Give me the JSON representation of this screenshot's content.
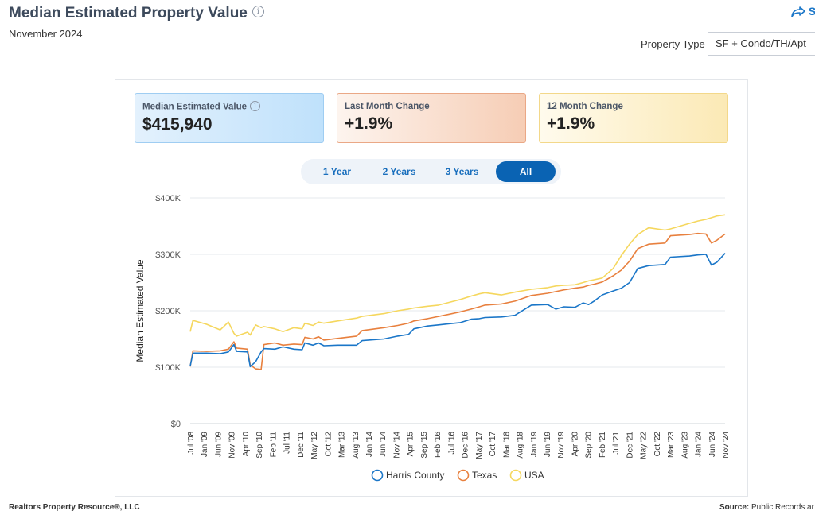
{
  "header": {
    "title": "Median Estimated Property Value",
    "subtitle": "November 2024",
    "share_label": "S",
    "property_type_label": "Property Type",
    "property_type_value": "SF + Condo/TH/Apt"
  },
  "stats": [
    {
      "label": "Median Estimated Value",
      "value": "$415,940"
    },
    {
      "label": "Last Month Change",
      "value": "+1.9%"
    },
    {
      "label": "12 Month Change",
      "value": "+1.9%"
    }
  ],
  "range_tabs": [
    {
      "label": "1 Year",
      "active": false
    },
    {
      "label": "2 Years",
      "active": false
    },
    {
      "label": "3 Years",
      "active": false
    },
    {
      "label": "All",
      "active": true
    }
  ],
  "footer": {
    "left": "Realtors Property Resource®, LLC",
    "right_bold": "Source:",
    "right_text": " Public Records ar"
  },
  "colors": {
    "harris": "#1a76c8",
    "texas": "#e8803e",
    "usa": "#f5d75e",
    "active_tab": "#0a63b3"
  },
  "chart_data": {
    "type": "line",
    "ylabel": "Median Estimated Value",
    "ylim": [
      0,
      400000
    ],
    "yticks": [
      "$0",
      "$100K",
      "$200K",
      "$300K",
      "$400K"
    ],
    "ytick_values": [
      0,
      100000,
      200000,
      300000,
      400000
    ],
    "xtick_labels": [
      "Jul '08",
      "Jan '09",
      "Jun '09",
      "Nov '09",
      "Apr '10",
      "Sep '10",
      "Feb '11",
      "Jul '11",
      "Dec '11",
      "May '12",
      "Oct '12",
      "Mar '13",
      "Aug '13",
      "Jan '14",
      "Jun '14",
      "Nov '14",
      "Apr '15",
      "Sep '15",
      "Feb '16",
      "Jul '16",
      "Dec '16",
      "May '17",
      "Oct '17",
      "Mar '18",
      "Aug '18",
      "Jan '19",
      "Jun '19",
      "Nov '19",
      "Apr '20",
      "Sep '20",
      "Feb '21",
      "Jul '21",
      "Dec '21",
      "May '22",
      "Oct '22",
      "Mar '23",
      "Aug '23",
      "Jan '24",
      "Jun '24",
      "Nov '24"
    ],
    "xrange": [
      "2008-07",
      "2024-11"
    ],
    "legend_position": "bottom",
    "series": [
      {
        "name": "Harris County",
        "color": "#1a76c8",
        "points": [
          [
            "2008-07",
            102000
          ],
          [
            "2008-08",
            125000
          ],
          [
            "2009-01",
            125000
          ],
          [
            "2009-06",
            124000
          ],
          [
            "2009-09",
            127000
          ],
          [
            "2009-11",
            140000
          ],
          [
            "2009-12",
            128000
          ],
          [
            "2010-04",
            127000
          ],
          [
            "2010-05",
            101000
          ],
          [
            "2010-07",
            110000
          ],
          [
            "2010-09",
            127000
          ],
          [
            "2010-10",
            133000
          ],
          [
            "2011-02",
            132000
          ],
          [
            "2011-05",
            136000
          ],
          [
            "2011-09",
            132000
          ],
          [
            "2011-12",
            131000
          ],
          [
            "2012-01",
            143000
          ],
          [
            "2012-04",
            139000
          ],
          [
            "2012-06",
            143000
          ],
          [
            "2012-08",
            138000
          ],
          [
            "2013-01",
            139000
          ],
          [
            "2013-08",
            139000
          ],
          [
            "2013-10",
            147000
          ],
          [
            "2014-06",
            150000
          ],
          [
            "2014-11",
            155000
          ],
          [
            "2015-03",
            158000
          ],
          [
            "2015-05",
            168000
          ],
          [
            "2015-10",
            173000
          ],
          [
            "2016-02",
            175000
          ],
          [
            "2016-06",
            177000
          ],
          [
            "2016-10",
            179000
          ],
          [
            "2017-02",
            185000
          ],
          [
            "2017-05",
            186000
          ],
          [
            "2017-07",
            188000
          ],
          [
            "2018-01",
            189000
          ],
          [
            "2018-06",
            192000
          ],
          [
            "2018-12",
            210000
          ],
          [
            "2019-06",
            211000
          ],
          [
            "2019-09",
            203000
          ],
          [
            "2019-12",
            207000
          ],
          [
            "2020-04",
            206000
          ],
          [
            "2020-07",
            214000
          ],
          [
            "2020-09",
            211000
          ],
          [
            "2020-11",
            217000
          ],
          [
            "2021-02",
            228000
          ],
          [
            "2021-06",
            235000
          ],
          [
            "2021-09",
            240000
          ],
          [
            "2021-12",
            250000
          ],
          [
            "2022-03",
            275000
          ],
          [
            "2022-07",
            280000
          ],
          [
            "2023-01",
            282000
          ],
          [
            "2023-03",
            295000
          ],
          [
            "2023-10",
            297000
          ],
          [
            "2024-01",
            299000
          ],
          [
            "2024-04",
            300000
          ],
          [
            "2024-06",
            281000
          ],
          [
            "2024-08",
            286000
          ],
          [
            "2024-11",
            302000
          ]
        ]
      },
      {
        "name": "Texas",
        "color": "#e8803e",
        "points": [
          [
            "2008-07",
            101000
          ],
          [
            "2008-08",
            129000
          ],
          [
            "2009-01",
            128000
          ],
          [
            "2009-06",
            129000
          ],
          [
            "2009-09",
            132000
          ],
          [
            "2009-11",
            145000
          ],
          [
            "2009-12",
            134000
          ],
          [
            "2010-04",
            132000
          ],
          [
            "2010-05",
            104000
          ],
          [
            "2010-07",
            97000
          ],
          [
            "2010-09",
            96000
          ],
          [
            "2010-10",
            140000
          ],
          [
            "2011-02",
            143000
          ],
          [
            "2011-05",
            139000
          ],
          [
            "2011-09",
            141000
          ],
          [
            "2011-12",
            140000
          ],
          [
            "2012-01",
            153000
          ],
          [
            "2012-04",
            150000
          ],
          [
            "2012-06",
            154000
          ],
          [
            "2012-08",
            148000
          ],
          [
            "2013-01",
            151000
          ],
          [
            "2013-08",
            155000
          ],
          [
            "2013-10",
            165000
          ],
          [
            "2014-06",
            170000
          ],
          [
            "2014-11",
            174000
          ],
          [
            "2015-03",
            178000
          ],
          [
            "2015-05",
            182000
          ],
          [
            "2015-10",
            186000
          ],
          [
            "2016-02",
            190000
          ],
          [
            "2016-06",
            194000
          ],
          [
            "2016-10",
            198000
          ],
          [
            "2017-02",
            203000
          ],
          [
            "2017-05",
            207000
          ],
          [
            "2017-07",
            210000
          ],
          [
            "2018-01",
            212000
          ],
          [
            "2018-06",
            217000
          ],
          [
            "2018-12",
            227000
          ],
          [
            "2019-06",
            231000
          ],
          [
            "2019-09",
            234000
          ],
          [
            "2019-12",
            237000
          ],
          [
            "2020-04",
            240000
          ],
          [
            "2020-07",
            242000
          ],
          [
            "2020-09",
            245000
          ],
          [
            "2020-11",
            247000
          ],
          [
            "2021-02",
            251000
          ],
          [
            "2021-06",
            262000
          ],
          [
            "2021-09",
            272000
          ],
          [
            "2021-12",
            288000
          ],
          [
            "2022-03",
            310000
          ],
          [
            "2022-07",
            318000
          ],
          [
            "2023-01",
            320000
          ],
          [
            "2023-03",
            333000
          ],
          [
            "2023-10",
            335000
          ],
          [
            "2024-01",
            337000
          ],
          [
            "2024-04",
            336000
          ],
          [
            "2024-06",
            320000
          ],
          [
            "2024-08",
            325000
          ],
          [
            "2024-11",
            336000
          ]
        ]
      },
      {
        "name": "USA",
        "color": "#f5d75e",
        "points": [
          [
            "2008-07",
            163000
          ],
          [
            "2008-08",
            183000
          ],
          [
            "2009-01",
            176000
          ],
          [
            "2009-06",
            166000
          ],
          [
            "2009-09",
            180000
          ],
          [
            "2009-11",
            160000
          ],
          [
            "2009-12",
            155000
          ],
          [
            "2010-04",
            162000
          ],
          [
            "2010-05",
            157000
          ],
          [
            "2010-07",
            175000
          ],
          [
            "2010-09",
            170000
          ],
          [
            "2010-10",
            172000
          ],
          [
            "2011-02",
            168000
          ],
          [
            "2011-05",
            163000
          ],
          [
            "2011-09",
            170000
          ],
          [
            "2011-12",
            168000
          ],
          [
            "2012-01",
            178000
          ],
          [
            "2012-04",
            174000
          ],
          [
            "2012-06",
            180000
          ],
          [
            "2012-08",
            178000
          ],
          [
            "2013-01",
            182000
          ],
          [
            "2013-08",
            187000
          ],
          [
            "2013-10",
            190000
          ],
          [
            "2014-06",
            195000
          ],
          [
            "2014-11",
            200000
          ],
          [
            "2015-03",
            203000
          ],
          [
            "2015-05",
            205000
          ],
          [
            "2015-10",
            208000
          ],
          [
            "2016-02",
            210000
          ],
          [
            "2016-06",
            215000
          ],
          [
            "2016-10",
            220000
          ],
          [
            "2017-02",
            226000
          ],
          [
            "2017-05",
            230000
          ],
          [
            "2017-07",
            232000
          ],
          [
            "2018-01",
            228000
          ],
          [
            "2018-06",
            233000
          ],
          [
            "2018-12",
            238000
          ],
          [
            "2019-06",
            241000
          ],
          [
            "2019-09",
            244000
          ],
          [
            "2019-12",
            245000
          ],
          [
            "2020-04",
            246000
          ],
          [
            "2020-07",
            250000
          ],
          [
            "2020-09",
            253000
          ],
          [
            "2020-11",
            255000
          ],
          [
            "2021-02",
            258000
          ],
          [
            "2021-06",
            275000
          ],
          [
            "2021-09",
            298000
          ],
          [
            "2021-12",
            318000
          ],
          [
            "2022-03",
            335000
          ],
          [
            "2022-07",
            347000
          ],
          [
            "2023-01",
            343000
          ],
          [
            "2023-03",
            345000
          ],
          [
            "2023-10",
            355000
          ],
          [
            "2024-01",
            359000
          ],
          [
            "2024-04",
            362000
          ],
          [
            "2024-06",
            365000
          ],
          [
            "2024-08",
            368000
          ],
          [
            "2024-11",
            370000
          ]
        ]
      }
    ]
  }
}
